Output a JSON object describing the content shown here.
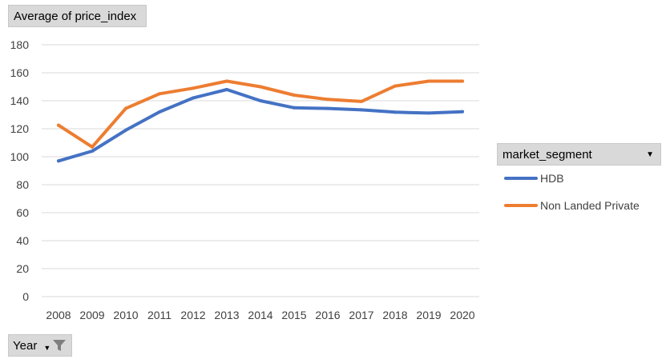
{
  "value_field": {
    "label": "Average of price_index"
  },
  "axis_field": {
    "label": "Year",
    "icons": [
      "dropdown-arrow-icon",
      "filter-icon"
    ]
  },
  "legend": {
    "title": "market_segment",
    "icon": "dropdown-arrow-icon"
  },
  "colors": {
    "HDB": "#4472c4",
    "Non Landed Private": "#ed7d31",
    "grid": "#d9d9d9"
  },
  "chart_data": {
    "type": "line",
    "title": "",
    "xlabel": "",
    "ylabel": "",
    "categories": [
      "2008",
      "2009",
      "2010",
      "2011",
      "2012",
      "2013",
      "2014",
      "2015",
      "2016",
      "2017",
      "2018",
      "2019",
      "2020"
    ],
    "ylim": [
      0,
      180
    ],
    "yticks": [
      "0",
      "20",
      "40",
      "60",
      "80",
      "100",
      "120",
      "140",
      "160",
      "180"
    ],
    "grid": true,
    "legend_position": "right",
    "series": [
      {
        "name": "HDB",
        "values": [
          97,
          104,
          119,
          132,
          142,
          148,
          140,
          135,
          134.5,
          133.5,
          131.8,
          131.2,
          132.2
        ]
      },
      {
        "name": "Non Landed Private",
        "values": [
          122.5,
          107,
          134.5,
          145,
          149,
          154,
          150,
          144,
          141,
          139.5,
          150.5,
          154,
          154
        ]
      }
    ]
  }
}
